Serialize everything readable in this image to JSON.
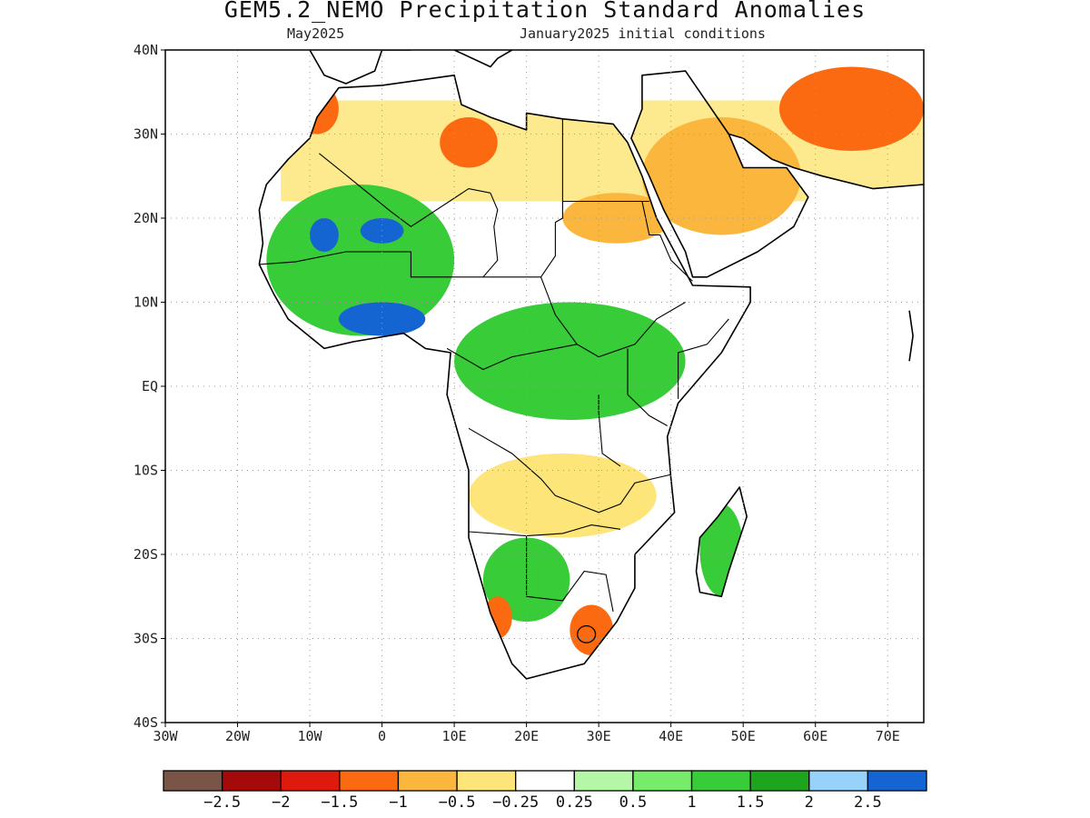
{
  "title": "GEM5.2_NEMO Precipitation Standard Anomalies",
  "subtitle_left": "May2025",
  "subtitle_right": "January2025 initial conditions",
  "map": {
    "lon_range": [
      -30,
      75
    ],
    "lat_range": [
      -40,
      40
    ],
    "lon_ticks": [
      {
        "value": -30,
        "label": "30W"
      },
      {
        "value": -20,
        "label": "20W"
      },
      {
        "value": -10,
        "label": "10W"
      },
      {
        "value": 0,
        "label": "0"
      },
      {
        "value": 10,
        "label": "10E"
      },
      {
        "value": 20,
        "label": "20E"
      },
      {
        "value": 30,
        "label": "30E"
      },
      {
        "value": 40,
        "label": "40E"
      },
      {
        "value": 50,
        "label": "50E"
      },
      {
        "value": 60,
        "label": "60E"
      },
      {
        "value": 70,
        "label": "70E"
      }
    ],
    "lat_ticks": [
      {
        "value": 40,
        "label": "40N"
      },
      {
        "value": 30,
        "label": "30N"
      },
      {
        "value": 20,
        "label": "20N"
      },
      {
        "value": 10,
        "label": "10N"
      },
      {
        "value": 0,
        "label": "EQ"
      },
      {
        "value": -10,
        "label": "10S"
      },
      {
        "value": -20,
        "label": "20S"
      },
      {
        "value": -30,
        "label": "30S"
      },
      {
        "value": -40,
        "label": "40S"
      }
    ],
    "grid": "dotted"
  },
  "colorbar": {
    "colors": [
      "#7a5446",
      "#a50a0a",
      "#dd1a0d",
      "#fb6a10",
      "#fbb73d",
      "#fde57a",
      "#ffffff",
      "#b4f7a6",
      "#76ec6a",
      "#38cc38",
      "#1ea51e",
      "#96d2fa",
      "#1464d2"
    ],
    "labels": [
      "−2.5",
      "−2",
      "−1.5",
      "−1",
      "−0.5",
      "−0.25",
      "0.25",
      "0.5",
      "1",
      "1.5",
      "2",
      "2.5"
    ]
  },
  "anomaly_regions": [
    {
      "level": -1.5,
      "lon": [
        -12,
        -6
      ],
      "lat": [
        30,
        36
      ]
    },
    {
      "level": -1.5,
      "lon": [
        8,
        16
      ],
      "lat": [
        26,
        32
      ]
    },
    {
      "level": -1,
      "lon": [
        25,
        40
      ],
      "lat": [
        17,
        23
      ]
    },
    {
      "level": -1.5,
      "lon": [
        55,
        75
      ],
      "lat": [
        28,
        38
      ]
    },
    {
      "level": -1,
      "lon": [
        36,
        58
      ],
      "lat": [
        18,
        32
      ]
    },
    {
      "level": 1,
      "lon": [
        -16,
        10
      ],
      "lat": [
        6,
        24
      ]
    },
    {
      "level": 2.5,
      "lon": [
        -10,
        -6
      ],
      "lat": [
        16,
        20
      ]
    },
    {
      "level": 2.5,
      "lon": [
        -3,
        3
      ],
      "lat": [
        17,
        20
      ]
    },
    {
      "level": 2.5,
      "lon": [
        -6,
        6
      ],
      "lat": [
        6,
        10
      ]
    },
    {
      "level": 1,
      "lon": [
        10,
        42
      ],
      "lat": [
        -4,
        10
      ]
    },
    {
      "level": -0.5,
      "lon": [
        12,
        38
      ],
      "lat": [
        -18,
        -8
      ]
    },
    {
      "level": 1,
      "lon": [
        14,
        26
      ],
      "lat": [
        -28,
        -18
      ]
    },
    {
      "level": -1.5,
      "lon": [
        14,
        18
      ],
      "lat": [
        -30,
        -25
      ]
    },
    {
      "level": -1.5,
      "lon": [
        26,
        32
      ],
      "lat": [
        -32,
        -26
      ]
    },
    {
      "level": 1,
      "lon": [
        44,
        50
      ],
      "lat": [
        -25,
        -14
      ]
    }
  ]
}
